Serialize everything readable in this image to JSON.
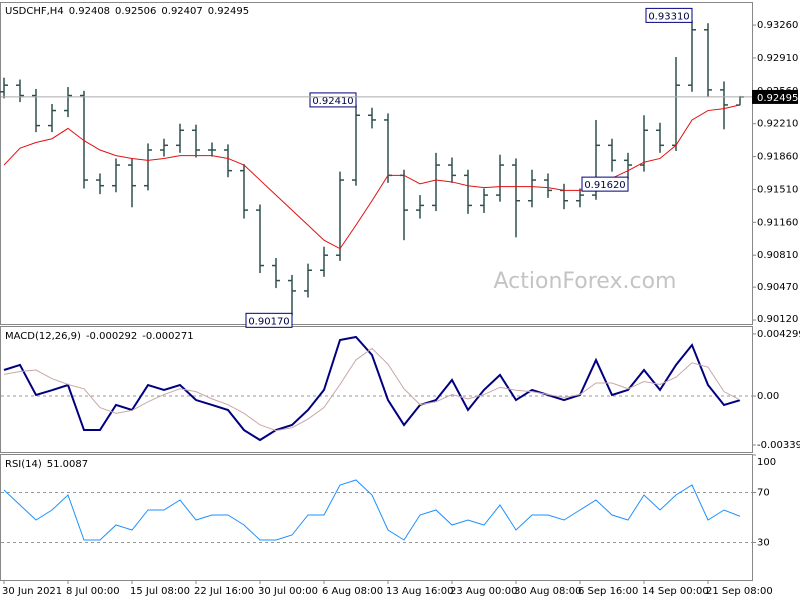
{
  "chart_data": [
    {
      "type": "ohlc",
      "title": "USDCHF,H4",
      "categories": [
        "30 Jun 2021",
        null,
        null,
        null,
        "8 Jul 00:00",
        null,
        null,
        null,
        "15 Jul 08:00",
        null,
        null,
        null,
        "22 Jul 16:00",
        null,
        null,
        null,
        "30 Jul 00:00",
        null,
        null,
        null,
        "6 Aug 08:00",
        null,
        null,
        null,
        "13 Aug 16:00",
        null,
        null,
        null,
        "23 Aug 00:00",
        null,
        null,
        null,
        "30 Aug 08:00",
        null,
        null,
        null,
        "6 Sep 16:00",
        null,
        null,
        null,
        "14 Sep 00:00",
        null,
        null,
        null,
        "21 Sep 08:00",
        null,
        null
      ],
      "open": [
        0.9255,
        0.9262,
        0.9251,
        0.9219,
        0.9235,
        0.9251,
        0.9161,
        0.9155,
        0.9177,
        0.9155,
        0.9193,
        0.9198,
        0.9214,
        0.9193,
        0.9193,
        0.9171,
        0.9129,
        0.907,
        0.9054,
        0.9043,
        0.9065,
        0.9081,
        0.9161,
        0.923,
        0.9225,
        0.9166,
        0.9129,
        0.9134,
        0.9177,
        0.9166,
        0.9134,
        0.9145,
        0.9177,
        0.9139,
        0.9161,
        0.915,
        0.9139,
        0.9145,
        0.9198,
        0.9182,
        0.9177,
        0.9214,
        0.9198,
        0.9262,
        0.9321,
        0.9257,
        0.92408
      ],
      "high": [
        0.927,
        0.9268,
        0.9258,
        0.9242,
        0.926,
        0.9256,
        0.9168,
        0.9184,
        0.9184,
        0.92,
        0.9205,
        0.9221,
        0.922,
        0.9201,
        0.9199,
        0.9178,
        0.9135,
        0.9078,
        0.906,
        0.9072,
        0.909,
        0.917,
        0.9241,
        0.9238,
        0.9232,
        0.9172,
        0.9145,
        0.919,
        0.9185,
        0.9172,
        0.9152,
        0.9188,
        0.9184,
        0.9172,
        0.9168,
        0.9157,
        0.9152,
        0.9225,
        0.9205,
        0.919,
        0.923,
        0.9222,
        0.9292,
        0.9331,
        0.9328,
        0.9266,
        0.92506
      ],
      "low": [
        0.9248,
        0.9244,
        0.9212,
        0.9212,
        0.9228,
        0.9152,
        0.9146,
        0.9148,
        0.9132,
        0.915,
        0.9186,
        0.919,
        0.9185,
        0.9186,
        0.9164,
        0.912,
        0.9062,
        0.9046,
        0.9017,
        0.9036,
        0.9058,
        0.9075,
        0.9155,
        0.9216,
        0.9158,
        0.9097,
        0.912,
        0.9128,
        0.9158,
        0.9125,
        0.9126,
        0.9138,
        0.91,
        0.9132,
        0.9142,
        0.913,
        0.9132,
        0.914,
        0.917,
        0.9162,
        0.917,
        0.919,
        0.9192,
        0.9255,
        0.925,
        0.9215,
        0.92407
      ],
      "close": [
        0.9262,
        0.9251,
        0.9219,
        0.9235,
        0.9251,
        0.9161,
        0.9155,
        0.9177,
        0.9155,
        0.9193,
        0.9198,
        0.9214,
        0.9193,
        0.9193,
        0.9171,
        0.9129,
        0.907,
        0.9054,
        0.9043,
        0.9065,
        0.9081,
        0.9161,
        0.923,
        0.9225,
        0.9166,
        0.9129,
        0.9134,
        0.9177,
        0.9166,
        0.9134,
        0.9145,
        0.9177,
        0.9139,
        0.9161,
        0.915,
        0.9139,
        0.9145,
        0.9198,
        0.9182,
        0.9177,
        0.9214,
        0.9198,
        0.9262,
        0.9321,
        0.9257,
        0.9241,
        0.92495
      ],
      "color": "#2f4f4f",
      "series": [
        {
          "color": "#e01010",
          "values": [
            0.9177,
            0.9195,
            0.9201,
            0.9205,
            0.9216,
            0.9203,
            0.9193,
            0.9187,
            0.9184,
            0.9182,
            0.9184,
            0.9187,
            0.9187,
            0.9187,
            0.9184,
            0.9177,
            0.9161,
            0.9145,
            0.9129,
            0.9113,
            0.9097,
            0.9088,
            0.9113,
            0.9139,
            0.9166,
            0.9166,
            0.9157,
            0.9161,
            0.9159,
            0.9155,
            0.9153,
            0.9154,
            0.9154,
            0.9154,
            0.9153,
            0.915,
            0.915,
            0.9156,
            0.9163,
            0.9171,
            0.918,
            0.9184,
            0.9198,
            0.9225,
            0.9235,
            0.9237,
            0.9241
          ]
        }
      ],
      "ylim": [
        0.90067,
        0.93495
      ],
      "yticks": [
        {
          "value": 0.9326,
          "label": "0.93260"
        },
        {
          "value": 0.9291,
          "label": "0.92910"
        },
        {
          "value": 0.9256,
          "label": "0.92560"
        },
        {
          "value": 0.9221,
          "label": "0.92210"
        },
        {
          "value": 0.9186,
          "label": "0.91860"
        },
        {
          "value": 0.9151,
          "label": "0.91510"
        },
        {
          "value": 0.9116,
          "label": "0.91160"
        },
        {
          "value": 0.9081,
          "label": "0.90810"
        },
        {
          "value": 0.9047,
          "label": "0.90470"
        },
        {
          "value": 0.9012,
          "label": "0.90120"
        }
      ],
      "annotations": [
        {
          "value": 0.9331,
          "label": "0.93310"
        },
        {
          "value": 0.9241,
          "label": "0.92410"
        },
        {
          "value": 0.9017,
          "label": "0.90170"
        },
        {
          "value": 0.9162,
          "label": "0.91620"
        }
      ],
      "watermark": "ActionForex.com"
    },
    {
      "type": "line",
      "title": "MACD(12,26,9)",
      "series": [
        {
          "color": "#000080",
          "width": 2,
          "values": [
            0.0018,
            0.00215,
            7e-05,
            0.0004,
            0.00076,
            -0.00236,
            -0.00236,
            -0.00062,
            -0.00097,
            0.00076,
            0.00042,
            0.00076,
            -0.00028,
            -0.00062,
            -0.00097,
            -0.00236,
            -0.00305,
            -0.00236,
            -0.00201,
            -0.00097,
            0.00042,
            0.00388,
            0.00409,
            0.00284,
            -0.00028,
            -0.00201,
            -0.00062,
            -0.00028,
            0.00111,
            -0.00097,
            0.00042,
            0.00146,
            -0.00028,
            0.00042,
            7e-05,
            -0.00028,
            7e-05,
            0.00249,
            7e-05,
            0.00042,
            0.0018,
            0.00042,
            0.00215,
            0.00353,
            0.00076,
            -0.00062,
            -0.000292
          ]
        },
        {
          "color": "#c8a8a8",
          "width": 1,
          "values": [
            0.0015,
            0.0017,
            0.0018,
            0.0012,
            0.0008,
            0.0005,
            -0.0008,
            -0.0012,
            -0.001,
            -0.0004,
            0.0001,
            0.0005,
            0.0003,
            -0.0002,
            -0.0006,
            -0.0012,
            -0.002,
            -0.0024,
            -0.0022,
            -0.0016,
            -0.0008,
            0.0008,
            0.0025,
            0.0033,
            0.0022,
            0.0005,
            -0.0006,
            -0.0004,
            0.0001,
            -0.0002,
            0.0001,
            0.0006,
            0.0004,
            0.0003,
            0.0001,
            -0.0001,
            0.0001,
            0.0009,
            0.0009,
            0.0005,
            0.001,
            0.0008,
            0.0013,
            0.0023,
            0.002,
            0.0003,
            -0.000271
          ]
        }
      ],
      "ylim": [
        -0.00388,
        0.00478
      ],
      "yticks": [
        0.004299,
        {
          "value": 0,
          "label": "0.00"
        },
        -0.003396
      ],
      "levels": [
        0
      ]
    },
    {
      "type": "line",
      "title": "RSI(14)",
      "series": [
        {
          "color": "#1e90ff",
          "width": 1,
          "values": [
            72,
            60,
            48,
            56,
            68,
            32,
            32,
            44,
            40,
            56,
            56,
            64,
            48,
            52,
            52,
            44,
            32,
            32,
            36,
            52,
            52,
            76,
            80,
            68,
            40,
            32,
            52,
            56,
            44,
            48,
            44,
            60,
            40,
            52,
            52,
            48,
            56,
            64,
            52,
            48,
            68,
            56,
            68,
            76,
            48,
            56,
            51.0087
          ]
        }
      ],
      "ylim": [
        0,
        100
      ],
      "yticks": [
        100,
        70,
        30
      ],
      "levels": [
        70,
        30
      ]
    }
  ]
}
